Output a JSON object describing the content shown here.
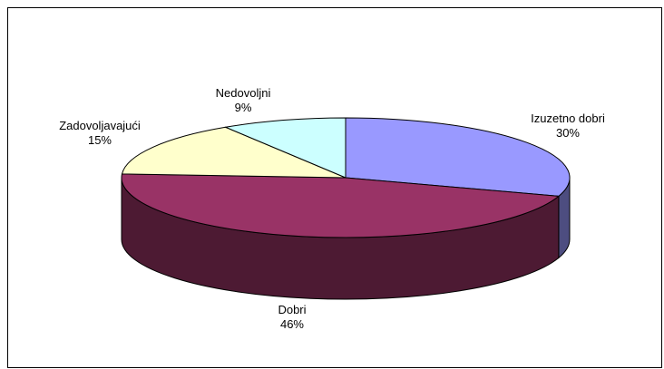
{
  "chart_data": {
    "type": "pie",
    "title": "",
    "three_d": true,
    "slices": [
      {
        "label": "Izuzetno dobri",
        "percent_label": "30%",
        "value": 30,
        "color": "#9999FF",
        "side_color": "#4D4D80"
      },
      {
        "label": "Dobri",
        "percent_label": "46%",
        "value": 46,
        "color": "#993366",
        "side_color": "#4D1A33"
      },
      {
        "label": "Zadovoljavajući",
        "percent_label": "15%",
        "value": 15,
        "color": "#FFFFCC",
        "side_color": "#808066"
      },
      {
        "label": "Nedovoljni",
        "percent_label": "9%",
        "value": 9,
        "color": "#CCFFFF",
        "side_color": "#668080"
      }
    ],
    "legend": "none"
  }
}
